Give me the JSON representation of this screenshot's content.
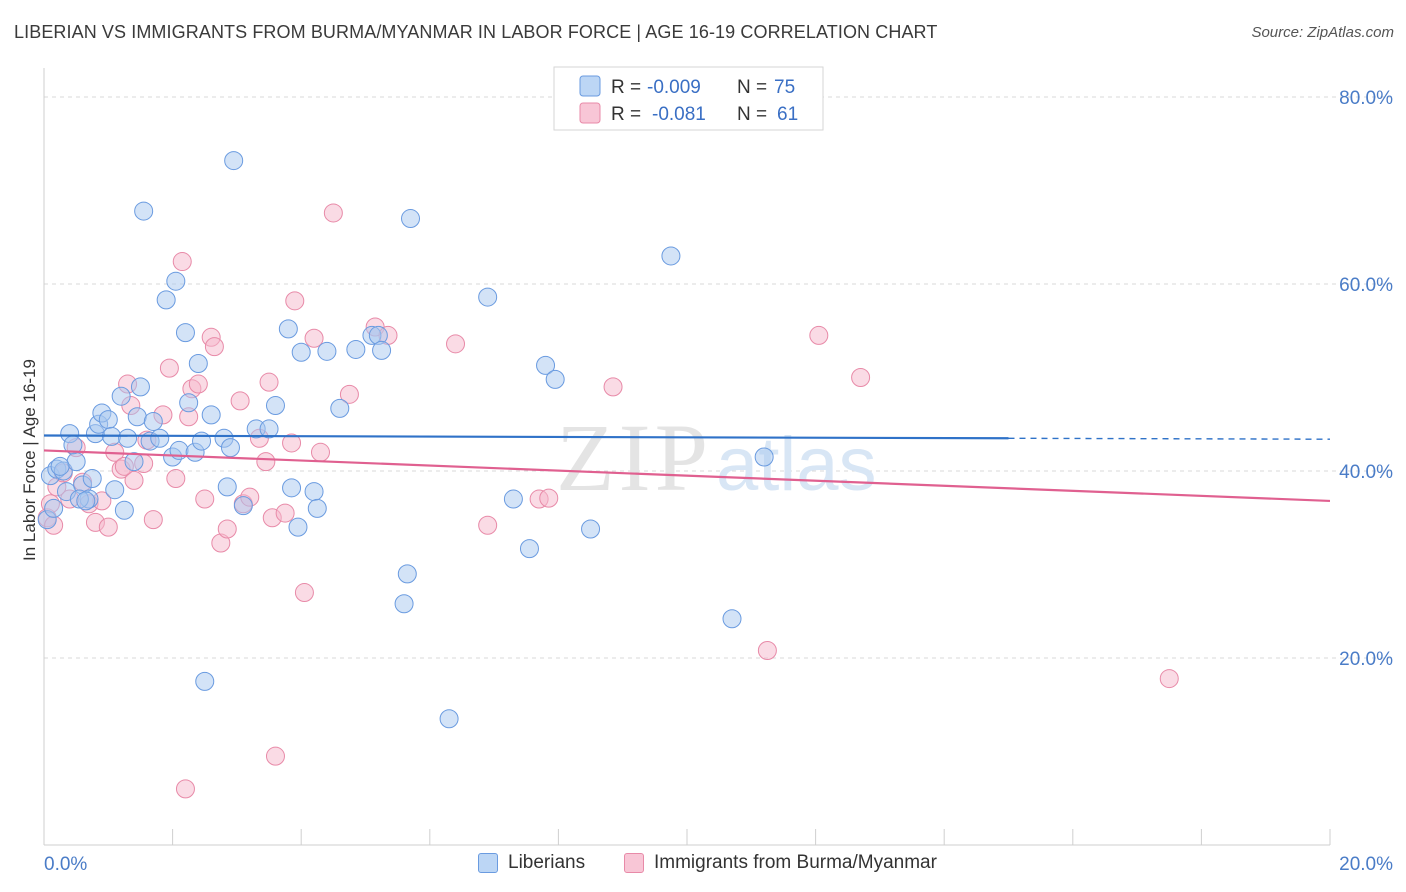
{
  "header": {
    "title": "LIBERIAN VS IMMIGRANTS FROM BURMA/MYANMAR IN LABOR FORCE | AGE 16-19 CORRELATION CHART",
    "source": "Source: ZipAtlas.com"
  },
  "watermark": {
    "zip": "ZIP",
    "atlas": "atlas"
  },
  "colors": {
    "blue_fill": "#a8c8f0",
    "blue_stroke": "#6a9be0",
    "blue_line": "#2f72c8",
    "pink_fill": "#f5b8cc",
    "pink_stroke": "#e88aa8",
    "pink_line": "#e06090",
    "axis_label": "#4a7cc7",
    "grid": "#d8d8d8"
  },
  "legend_top": {
    "rows": [
      {
        "r_label": "R =",
        "r_value": "-0.009",
        "n_label": "N =",
        "n_value": "75"
      },
      {
        "r_label": "R =",
        "r_value": "-0.081",
        "n_label": "N =",
        "n_value": "61"
      }
    ]
  },
  "legend_bottom": {
    "items": [
      "Liberians",
      "Immigrants from Burma/Myanmar"
    ]
  },
  "chart_data": {
    "type": "scatter",
    "title": "LIBERIAN VS IMMIGRANTS FROM BURMA/MYANMAR IN LABOR FORCE | AGE 16-19 CORRELATION CHART",
    "xlabel": "",
    "ylabel": "In Labor Force | Age 16-19",
    "xlim": [
      0,
      20
    ],
    "ylim": [
      0,
      80
    ],
    "x_ticks": [
      "0.0%",
      "20.0%"
    ],
    "y_ticks": [
      "20.0%",
      "40.0%",
      "60.0%",
      "80.0%"
    ],
    "y_tick_values": [
      20,
      40,
      60,
      80
    ],
    "grid": true,
    "legend_position": "top-center",
    "series": [
      {
        "name": "Liberians",
        "r": -0.009,
        "n": 75,
        "trend": {
          "x": [
            0,
            15
          ],
          "y": [
            43.8,
            43.5
          ],
          "dashed_x": [
            15,
            20
          ],
          "dashed_y": [
            43.5,
            43.4
          ]
        },
        "points": [
          [
            0.1,
            39.5
          ],
          [
            0.2,
            40.2
          ],
          [
            0.3,
            40
          ],
          [
            0.4,
            44
          ],
          [
            0.5,
            41
          ],
          [
            0.6,
            38.5
          ],
          [
            0.7,
            37
          ],
          [
            0.8,
            44
          ],
          [
            0.85,
            45
          ],
          [
            0.9,
            46.2
          ],
          [
            1.0,
            45.5
          ],
          [
            1.05,
            43.7
          ],
          [
            1.1,
            38
          ],
          [
            1.2,
            48
          ],
          [
            1.25,
            35.8
          ],
          [
            1.3,
            43.5
          ],
          [
            1.4,
            41
          ],
          [
            1.45,
            45.8
          ],
          [
            1.5,
            49
          ],
          [
            1.55,
            67.8
          ],
          [
            1.65,
            43.2
          ],
          [
            1.7,
            45.3
          ],
          [
            1.8,
            43.5
          ],
          [
            1.9,
            58.3
          ],
          [
            2.0,
            41.5
          ],
          [
            2.05,
            60.3
          ],
          [
            2.1,
            42.2
          ],
          [
            2.2,
            54.8
          ],
          [
            2.25,
            47.3
          ],
          [
            2.35,
            42
          ],
          [
            2.4,
            51.5
          ],
          [
            2.45,
            43.2
          ],
          [
            2.5,
            17.5
          ],
          [
            2.6,
            46
          ],
          [
            2.8,
            43.5
          ],
          [
            2.85,
            38.3
          ],
          [
            2.9,
            42.5
          ],
          [
            2.95,
            73.2
          ],
          [
            3.1,
            36.3
          ],
          [
            3.3,
            44.5
          ],
          [
            3.5,
            44.5
          ],
          [
            3.6,
            47
          ],
          [
            3.8,
            55.2
          ],
          [
            3.85,
            38.2
          ],
          [
            3.95,
            34
          ],
          [
            4.0,
            52.7
          ],
          [
            4.2,
            37.8
          ],
          [
            4.25,
            36
          ],
          [
            4.4,
            52.8
          ],
          [
            4.6,
            46.7
          ],
          [
            4.85,
            53
          ],
          [
            5.1,
            54.5
          ],
          [
            5.2,
            54.5
          ],
          [
            5.25,
            52.9
          ],
          [
            5.65,
            29
          ],
          [
            5.6,
            25.8
          ],
          [
            5.7,
            67
          ],
          [
            6.3,
            13.5
          ],
          [
            6.9,
            58.6
          ],
          [
            7.3,
            37
          ],
          [
            7.55,
            31.7
          ],
          [
            7.8,
            51.3
          ],
          [
            7.95,
            49.8
          ],
          [
            8.5,
            33.8
          ],
          [
            9.75,
            63
          ],
          [
            10.7,
            24.2
          ],
          [
            11.2,
            41.5
          ],
          [
            0.05,
            34.8
          ],
          [
            0.15,
            36
          ],
          [
            0.25,
            40.5
          ],
          [
            0.35,
            37.8
          ],
          [
            0.55,
            37
          ],
          [
            0.65,
            36.8
          ],
          [
            0.75,
            39.2
          ],
          [
            0.45,
            42.8
          ]
        ]
      },
      {
        "name": "Immigrants from Burma/Myanmar",
        "r": -0.081,
        "n": 61,
        "trend": {
          "x": [
            0,
            20
          ],
          "y": [
            42.2,
            36.8
          ]
        },
        "points": [
          [
            0.05,
            35
          ],
          [
            0.1,
            36.5
          ],
          [
            0.2,
            38.3
          ],
          [
            0.3,
            39.8
          ],
          [
            0.4,
            37
          ],
          [
            0.5,
            42.5
          ],
          [
            0.7,
            36.5
          ],
          [
            0.8,
            34.5
          ],
          [
            0.9,
            36.8
          ],
          [
            1.0,
            34
          ],
          [
            1.1,
            42
          ],
          [
            1.2,
            40.2
          ],
          [
            1.3,
            49.3
          ],
          [
            1.35,
            47
          ],
          [
            1.4,
            39
          ],
          [
            1.55,
            40.8
          ],
          [
            1.6,
            43.3
          ],
          [
            1.7,
            34.8
          ],
          [
            1.85,
            46
          ],
          [
            1.95,
            51
          ],
          [
            2.05,
            39.2
          ],
          [
            2.15,
            62.4
          ],
          [
            2.25,
            45.8
          ],
          [
            2.3,
            48.8
          ],
          [
            2.4,
            49.3
          ],
          [
            2.5,
            37
          ],
          [
            2.6,
            54.3
          ],
          [
            2.65,
            53.3
          ],
          [
            2.75,
            32.3
          ],
          [
            2.85,
            33.8
          ],
          [
            3.05,
            47.5
          ],
          [
            3.1,
            36.5
          ],
          [
            3.2,
            37.2
          ],
          [
            3.35,
            43.5
          ],
          [
            3.45,
            41
          ],
          [
            3.5,
            49.5
          ],
          [
            3.55,
            35
          ],
          [
            3.6,
            9.5
          ],
          [
            3.75,
            35.5
          ],
          [
            3.85,
            43
          ],
          [
            3.9,
            58.2
          ],
          [
            4.05,
            27
          ],
          [
            4.2,
            54.2
          ],
          [
            4.3,
            42
          ],
          [
            4.5,
            67.6
          ],
          [
            4.75,
            48.2
          ],
          [
            5.15,
            55.4
          ],
          [
            5.35,
            54.5
          ],
          [
            6.4,
            53.6
          ],
          [
            6.9,
            34.2
          ],
          [
            7.7,
            37
          ],
          [
            7.85,
            37.1
          ],
          [
            8.85,
            49
          ],
          [
            11.25,
            20.8
          ],
          [
            12.05,
            54.5
          ],
          [
            12.7,
            50
          ],
          [
            17.5,
            17.8
          ],
          [
            0.15,
            34.2
          ],
          [
            0.6,
            38.8
          ],
          [
            2.2,
            6
          ],
          [
            1.25,
            40.5
          ]
        ]
      }
    ]
  }
}
